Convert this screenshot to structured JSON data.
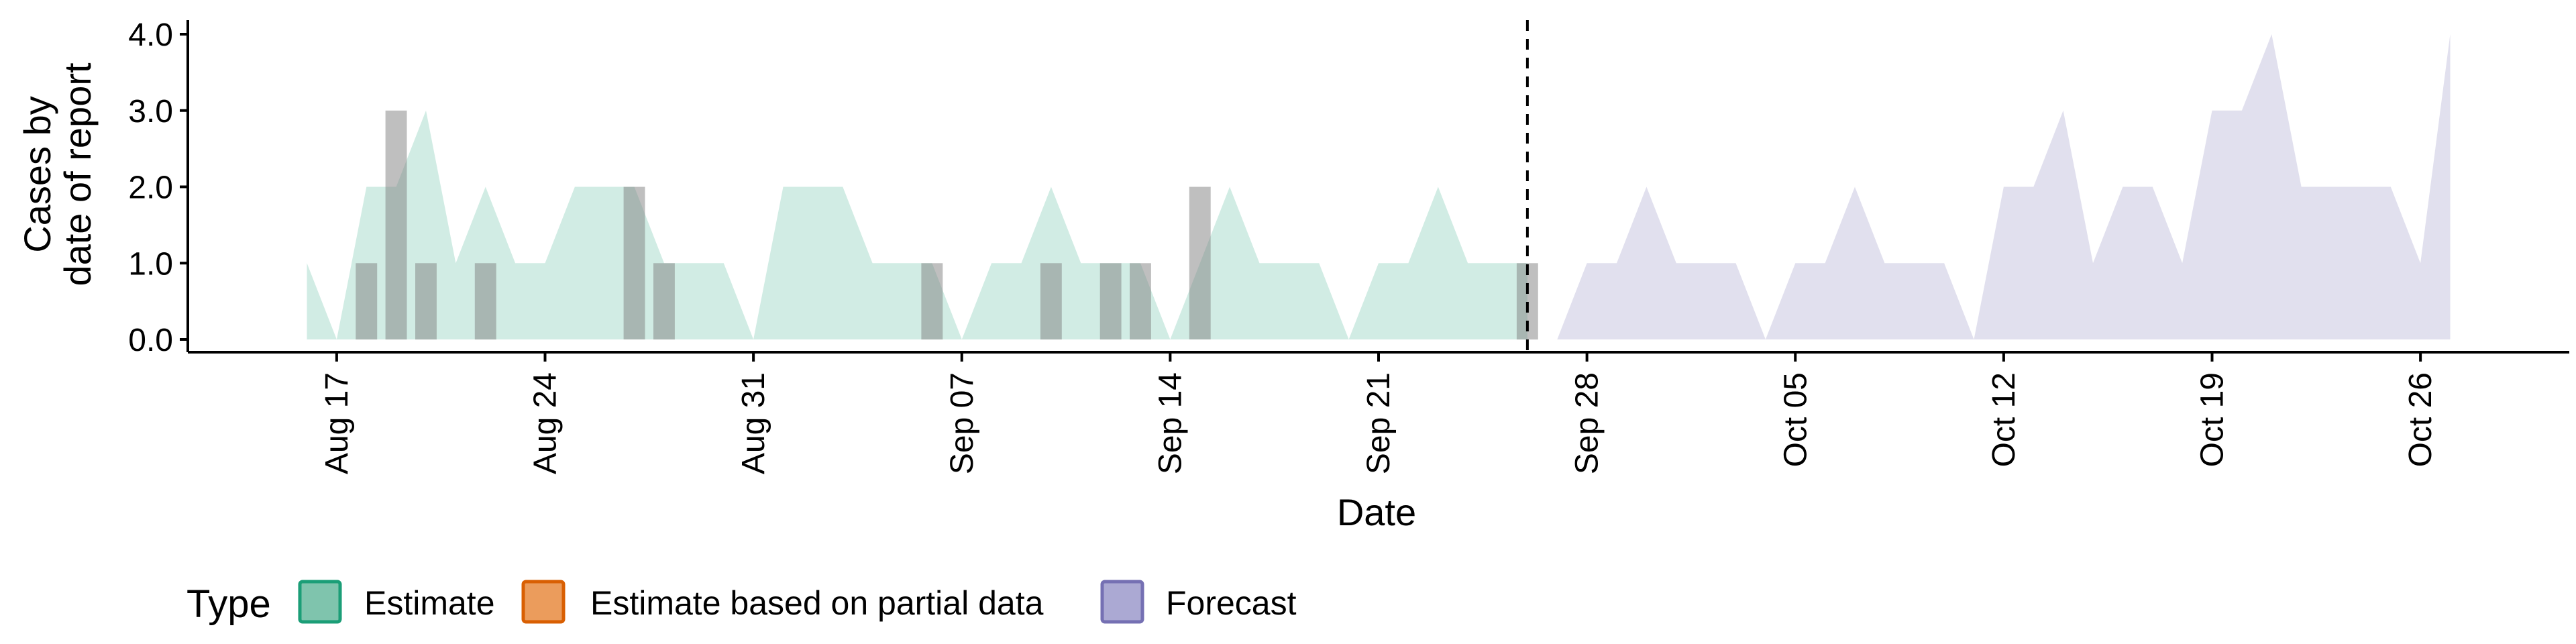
{
  "chart_data": {
    "type": "area",
    "xlabel": "Date",
    "ylabel_lines": [
      "Cases by",
      "date of report"
    ],
    "ylim": [
      0,
      4.0
    ],
    "y_ticks": [
      "0.0",
      "1.0",
      "2.0",
      "3.0",
      "4.0"
    ],
    "x_ticks": [
      {
        "date": "2020-08-17",
        "label": "Aug 17"
      },
      {
        "date": "2020-08-24",
        "label": "Aug 24"
      },
      {
        "date": "2020-08-31",
        "label": "Aug 31"
      },
      {
        "date": "2020-09-07",
        "label": "Sep 07"
      },
      {
        "date": "2020-09-14",
        "label": "Sep 14"
      },
      {
        "date": "2020-09-21",
        "label": "Sep 21"
      },
      {
        "date": "2020-09-28",
        "label": "Sep 28"
      },
      {
        "date": "2020-10-05",
        "label": "Oct 05"
      },
      {
        "date": "2020-10-12",
        "label": "Oct 12"
      },
      {
        "date": "2020-10-19",
        "label": "Oct 19"
      },
      {
        "date": "2020-10-26",
        "label": "Oct 26"
      }
    ],
    "xlim": [
      "2020-08-12",
      "2020-10-31"
    ],
    "vline_date": "2020-09-26",
    "legend": {
      "title": "Type",
      "position": "bottom",
      "entries": [
        {
          "label": "Estimate",
          "fill": "#7fc4ad",
          "stroke": "#1b9e77"
        },
        {
          "label": "Estimate based on partial data",
          "fill": "#eb9c5c",
          "stroke": "#d95f02"
        },
        {
          "label": "Forecast",
          "fill": "#aba9d3",
          "stroke": "#7570b3"
        }
      ]
    },
    "series": [
      {
        "type_label": "Estimate",
        "color": "#1b9e77",
        "x": [
          "2020-08-16",
          "2020-08-17",
          "2020-08-18",
          "2020-08-19",
          "2020-08-20",
          "2020-08-21",
          "2020-08-22",
          "2020-08-23",
          "2020-08-24",
          "2020-08-25",
          "2020-08-26",
          "2020-08-27",
          "2020-08-28",
          "2020-08-29",
          "2020-08-30",
          "2020-08-31",
          "2020-09-01",
          "2020-09-02",
          "2020-09-03",
          "2020-09-04",
          "2020-09-05",
          "2020-09-06",
          "2020-09-07",
          "2020-09-08",
          "2020-09-09",
          "2020-09-10",
          "2020-09-11",
          "2020-09-12",
          "2020-09-13",
          "2020-09-14",
          "2020-09-15",
          "2020-09-16",
          "2020-09-17",
          "2020-09-18",
          "2020-09-19",
          "2020-09-20",
          "2020-09-21",
          "2020-09-22",
          "2020-09-23",
          "2020-09-24",
          "2020-09-25",
          "2020-09-26"
        ],
        "y": [
          1,
          0,
          2,
          2,
          3,
          1,
          2,
          1,
          1,
          2,
          2,
          2,
          1,
          1,
          1,
          0,
          2,
          2,
          2,
          1,
          1,
          1,
          0,
          1,
          1,
          2,
          1,
          1,
          1,
          0,
          1,
          2,
          1,
          1,
          1,
          0,
          1,
          1,
          2,
          1,
          1,
          1
        ]
      },
      {
        "type_label": "Forecast",
        "color": "#7570b3",
        "x": [
          "2020-09-27",
          "2020-09-28",
          "2020-09-29",
          "2020-09-30",
          "2020-10-01",
          "2020-10-02",
          "2020-10-03",
          "2020-10-04",
          "2020-10-05",
          "2020-10-06",
          "2020-10-07",
          "2020-10-08",
          "2020-10-09",
          "2020-10-10",
          "2020-10-11",
          "2020-10-12",
          "2020-10-13",
          "2020-10-14",
          "2020-10-15",
          "2020-10-16",
          "2020-10-17",
          "2020-10-18",
          "2020-10-19",
          "2020-10-20",
          "2020-10-21",
          "2020-10-22",
          "2020-10-23",
          "2020-10-24",
          "2020-10-25",
          "2020-10-26",
          "2020-10-27"
        ],
        "y": [
          0,
          1,
          1,
          2,
          1,
          1,
          1,
          0,
          1,
          1,
          2,
          1,
          1,
          1,
          0,
          2,
          2,
          3,
          1,
          2,
          2,
          1,
          3,
          3,
          4,
          2,
          2,
          2,
          2,
          1,
          4
        ]
      }
    ],
    "reported_bars": [
      {
        "date": "2020-08-18",
        "value": 1
      },
      {
        "date": "2020-08-19",
        "value": 3
      },
      {
        "date": "2020-08-20",
        "value": 1
      },
      {
        "date": "2020-08-22",
        "value": 1
      },
      {
        "date": "2020-08-27",
        "value": 2
      },
      {
        "date": "2020-08-28",
        "value": 1
      },
      {
        "date": "2020-09-06",
        "value": 1
      },
      {
        "date": "2020-09-10",
        "value": 1
      },
      {
        "date": "2020-09-12",
        "value": 1
      },
      {
        "date": "2020-09-13",
        "value": 1
      },
      {
        "date": "2020-09-15",
        "value": 2
      },
      {
        "date": "2020-09-26",
        "value": 1
      }
    ]
  }
}
